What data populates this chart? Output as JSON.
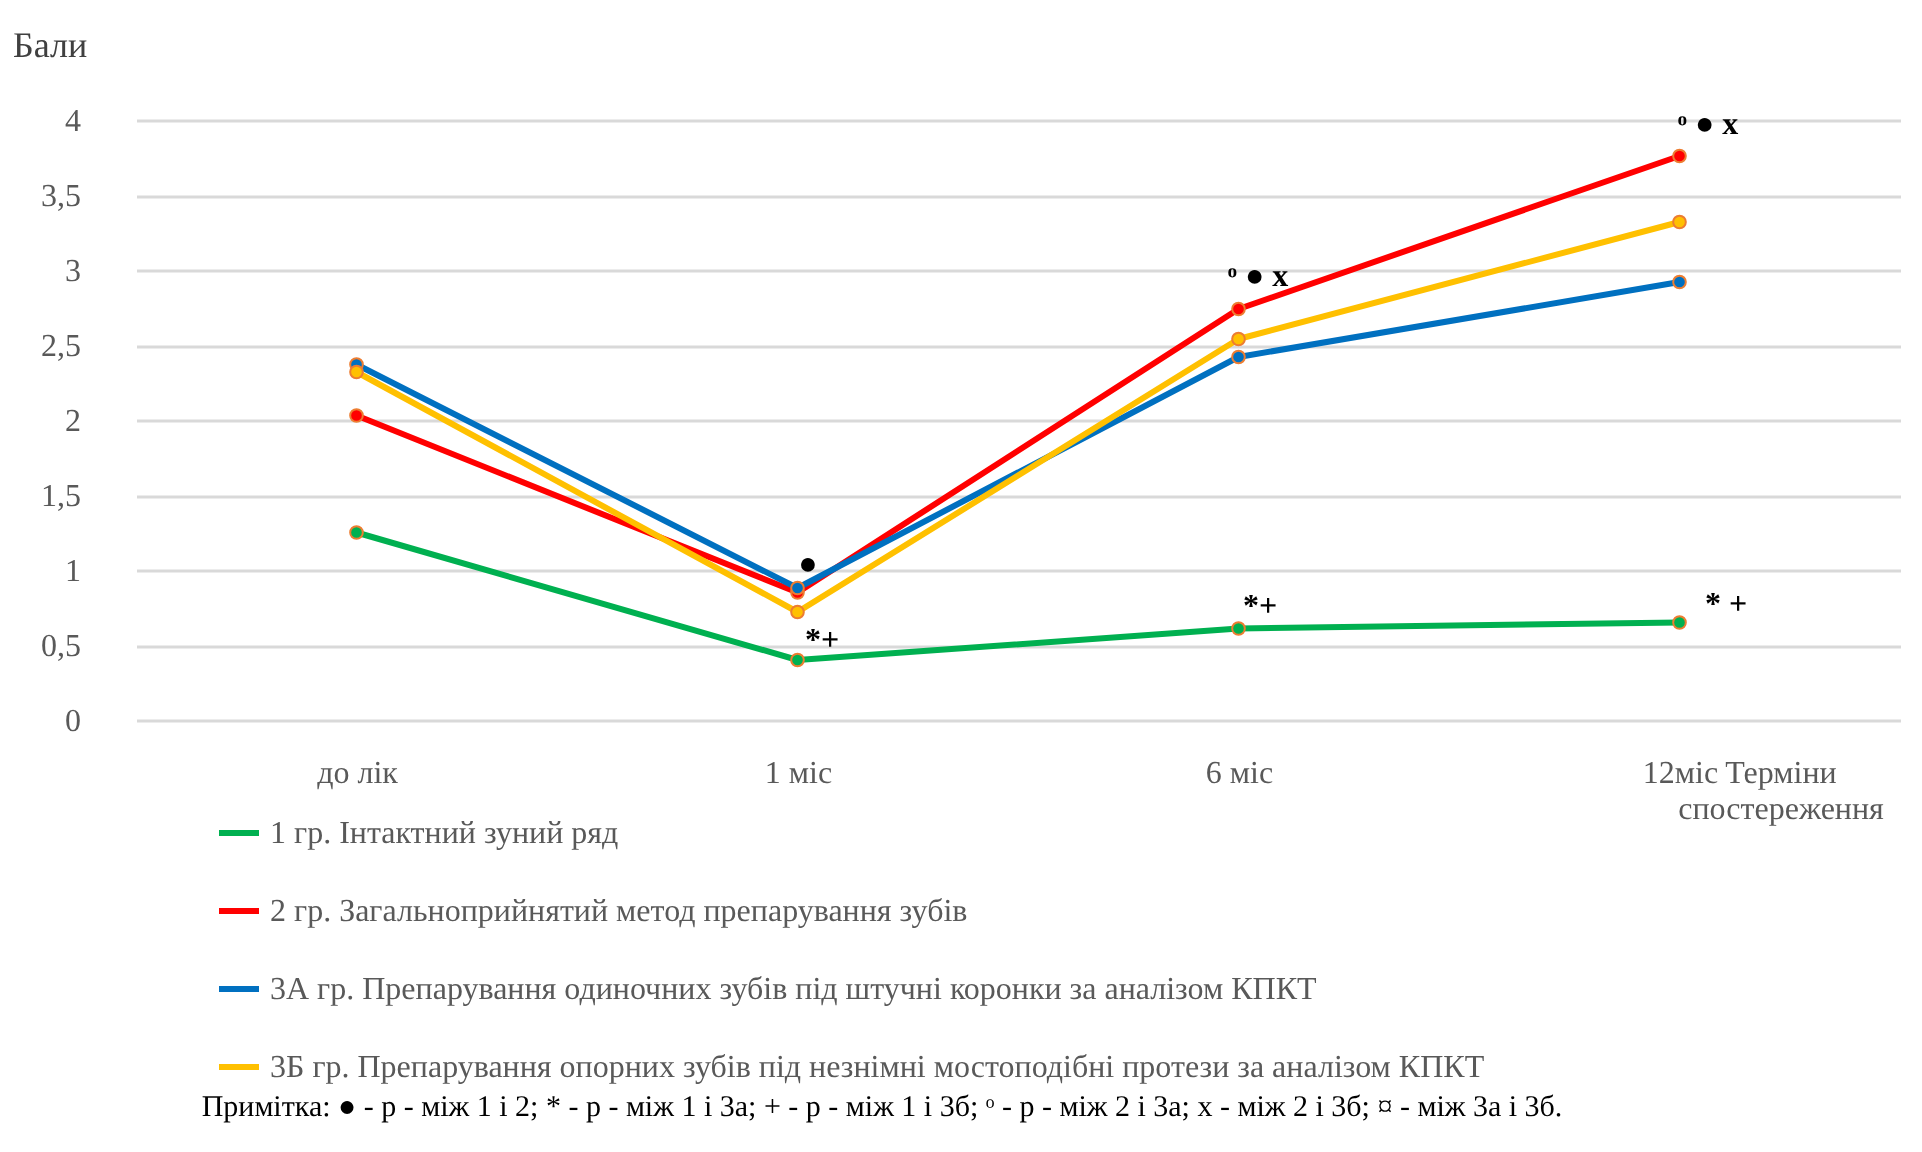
{
  "chart_data": {
    "type": "line",
    "ylabel": "Бали",
    "xlabel": "Терміни спостереження",
    "categories": [
      "до лік",
      "1 міс",
      "6 міс",
      "12міс"
    ],
    "series": [
      {
        "name": "1 гр. Інтактний зуний ряд",
        "color": "#00b050",
        "values": [
          1.25,
          0.4,
          0.61,
          0.65
        ]
      },
      {
        "name": "2 гр. Загальноприйнятий метод препарування зубів",
        "color": "#ff0000",
        "values": [
          2.03,
          0.85,
          2.74,
          3.76
        ]
      },
      {
        "name": "3А гр. Препарування одиночних зубів під штучні коронки за аналізом  КПКТ",
        "color": "#0070c0",
        "values": [
          2.37,
          0.88,
          2.42,
          2.92
        ]
      },
      {
        "name": "3Б гр. Препарування опорних зубів під незнімні мостоподібні протези за аналізом  КПКТ",
        "color": "#ffc000",
        "values": [
          2.32,
          0.72,
          2.54,
          3.32
        ]
      }
    ],
    "ylim": [
      0,
      4
    ],
    "yticks": [
      0,
      {
        "value": 0.5,
        "label": "0,5"
      },
      1,
      {
        "value": 1.5,
        "label": "1,5"
      },
      2,
      {
        "value": 2.5,
        "label": "2,5"
      },
      3,
      {
        "value": 3.5,
        "label": "3,5"
      },
      4
    ],
    "grid": "y",
    "legend": "bottom",
    "marker": "circle",
    "line_style": "solid",
    "annotations": [
      "●",
      "*+",
      "ᵒ ●  x",
      "*+",
      "ᵒ ●  x",
      "* +",
      "Примітка: ● - р - між 1 і 2; * - р - між 1 і 3а;  + - р - між 1 і 3б; ᵒ - р - між 2 і 3а; x -  між 2 і 3б; ¤ - між 3а і 3б."
    ]
  }
}
